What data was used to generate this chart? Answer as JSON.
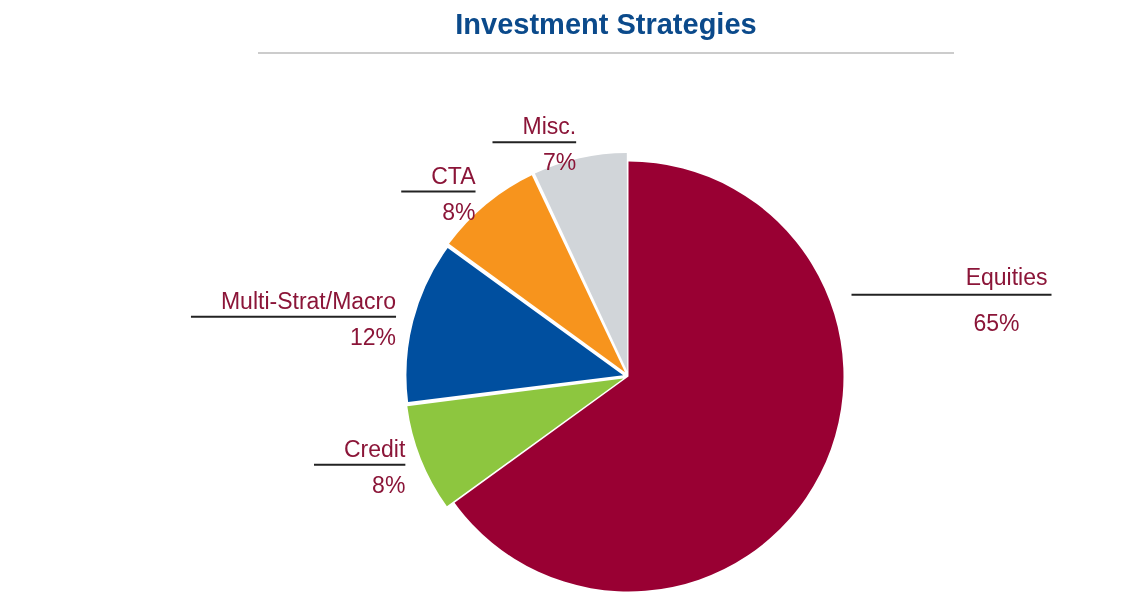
{
  "chart_data": {
    "type": "pie",
    "title": "Investment Strategies",
    "categories": [
      "Equities",
      "Credit",
      "Multi-Strat/Macro",
      "CTA",
      "Misc."
    ],
    "values": [
      65,
      8,
      12,
      8,
      7
    ],
    "colors": [
      "#990033",
      "#8dc63f",
      "#004f9f",
      "#f7941d",
      "#d1d5d9"
    ],
    "value_labels": [
      "65%",
      "8%",
      "12%",
      "8%",
      "7%"
    ],
    "legend": false
  }
}
